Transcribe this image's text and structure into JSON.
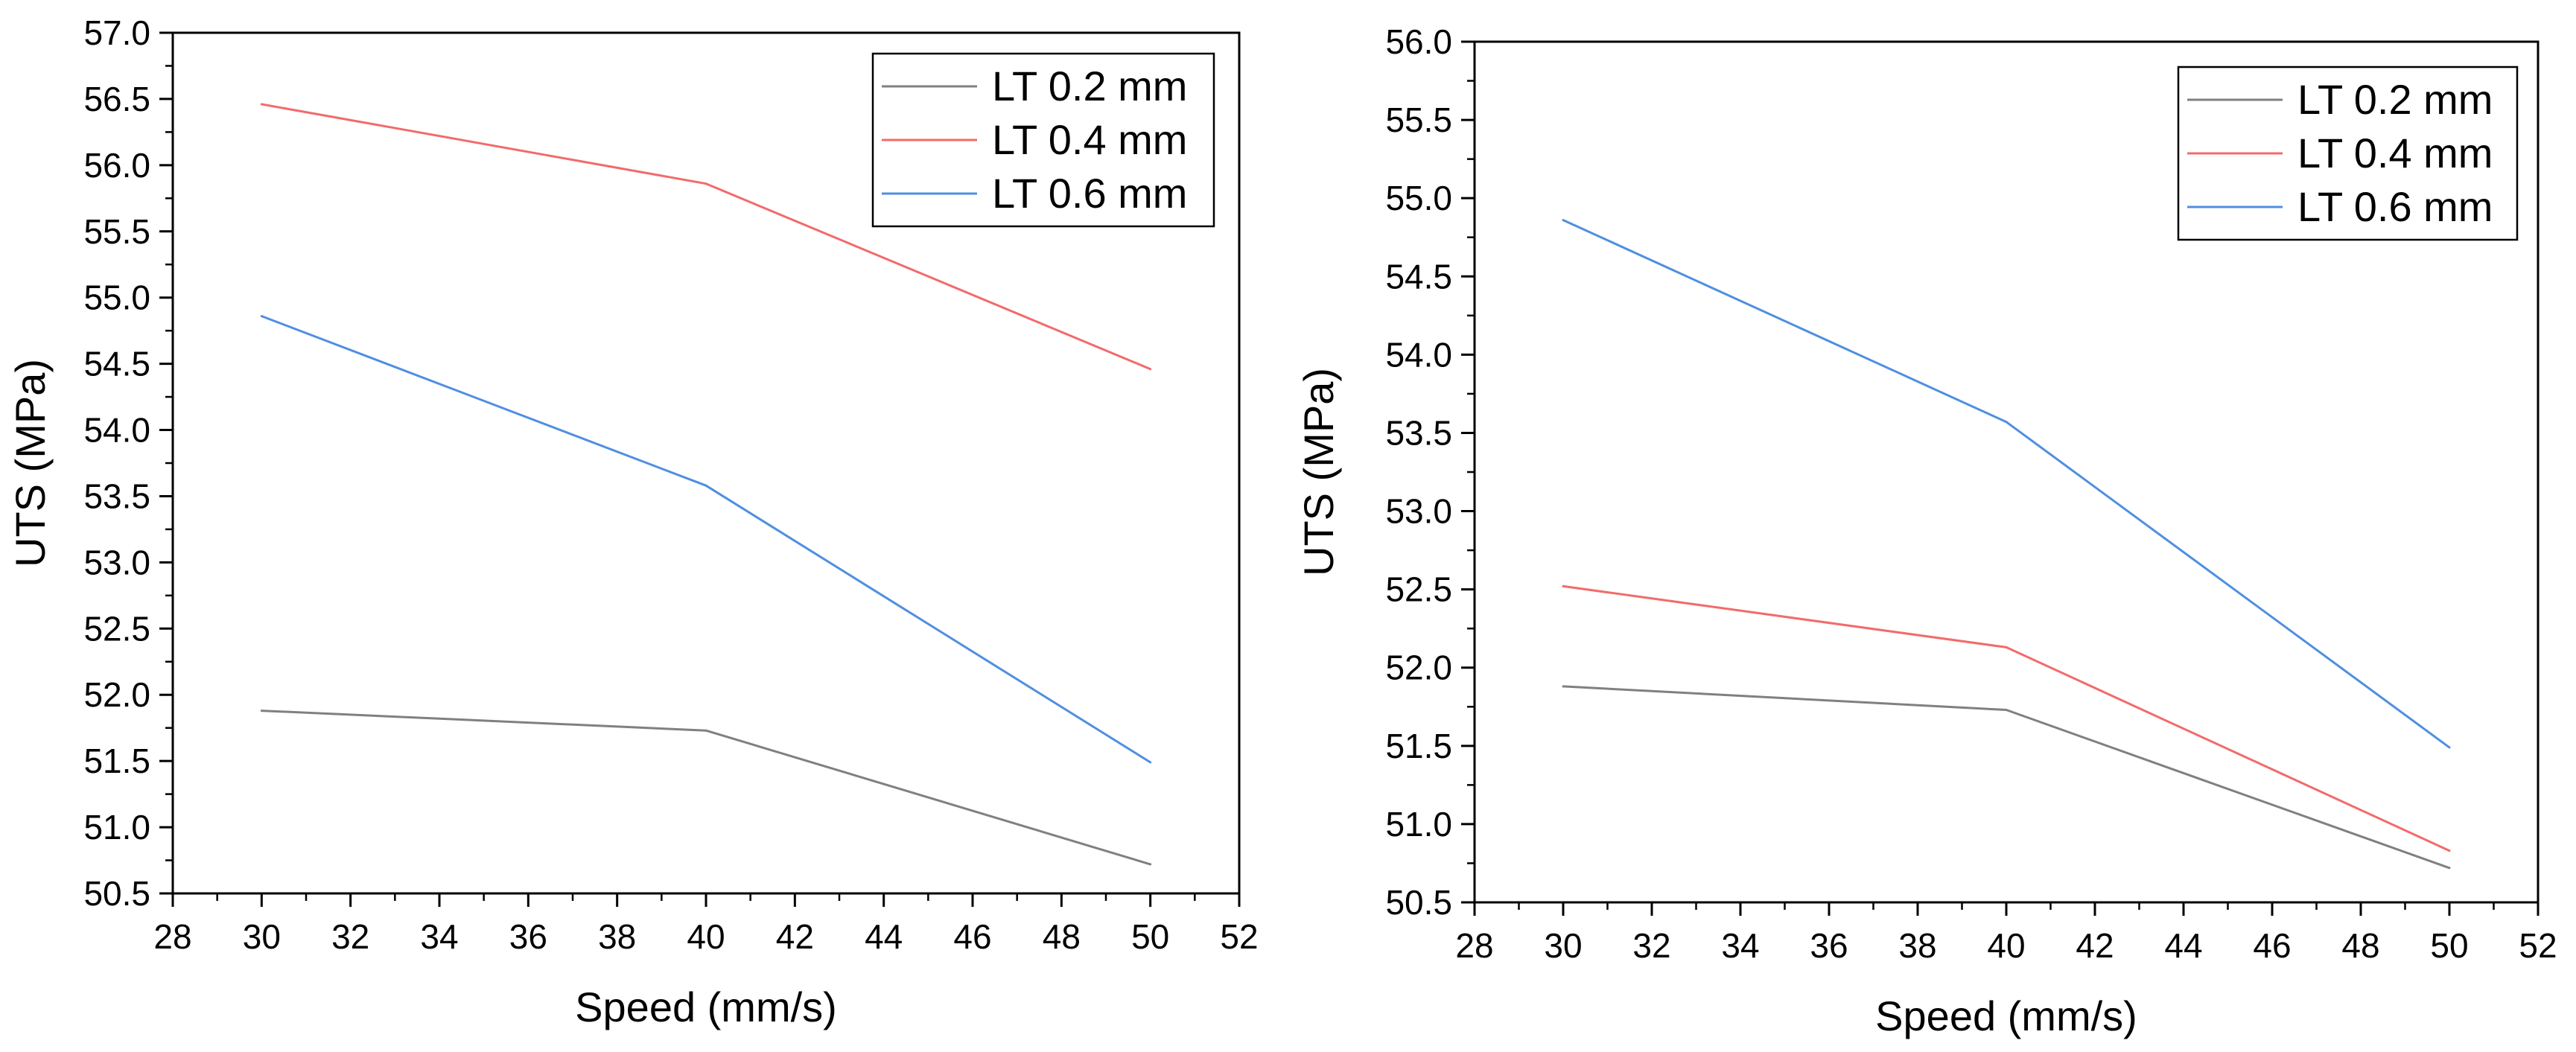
{
  "chart_data": [
    {
      "type": "line",
      "title": "",
      "xlabel": "Speed (mm/s)",
      "ylabel": "UTS (MPa)",
      "xlim": [
        28,
        52
      ],
      "ylim": [
        50.5,
        57.0
      ],
      "x_ticks": [
        28,
        30,
        32,
        34,
        36,
        38,
        40,
        42,
        44,
        46,
        48,
        50,
        52
      ],
      "y_ticks": [
        "50.5",
        "51.0",
        "51.5",
        "52.0",
        "52.5",
        "53.0",
        "53.5",
        "54.0",
        "54.5",
        "55.0",
        "55.5",
        "56.0",
        "56.5",
        "57.0"
      ],
      "legend_position": "top-right",
      "x": [
        30,
        40,
        50
      ],
      "series": [
        {
          "name": "LT 0.2 mm",
          "color": "#808080",
          "values": [
            51.88,
            51.73,
            50.72
          ]
        },
        {
          "name": "LT 0.4 mm",
          "color": "#f26b6b",
          "values": [
            56.46,
            55.86,
            54.46
          ]
        },
        {
          "name": "LT 0.6 mm",
          "color": "#4f8fe0",
          "values": [
            54.86,
            53.58,
            51.49
          ]
        }
      ]
    },
    {
      "type": "line",
      "title": "",
      "xlabel": "Speed (mm/s)",
      "ylabel": "UTS (MPa)",
      "xlim": [
        28,
        52
      ],
      "ylim": [
        50.5,
        56.0
      ],
      "x_ticks": [
        28,
        30,
        32,
        34,
        36,
        38,
        40,
        42,
        44,
        46,
        48,
        50,
        52
      ],
      "y_ticks": [
        "50.5",
        "51.0",
        "51.5",
        "52.0",
        "52.5",
        "53.0",
        "53.5",
        "54.0",
        "54.5",
        "55.0",
        "55.5",
        "56.0"
      ],
      "legend_position": "top-right",
      "x": [
        30,
        40,
        50
      ],
      "series": [
        {
          "name": "LT 0.2 mm",
          "color": "#808080",
          "values": [
            51.88,
            51.73,
            50.72
          ]
        },
        {
          "name": "LT 0.4 mm",
          "color": "#f26b6b",
          "values": [
            52.52,
            52.13,
            50.83
          ]
        },
        {
          "name": "LT 0.6 mm",
          "color": "#4f8fe0",
          "values": [
            54.86,
            53.57,
            51.49
          ]
        }
      ]
    }
  ]
}
